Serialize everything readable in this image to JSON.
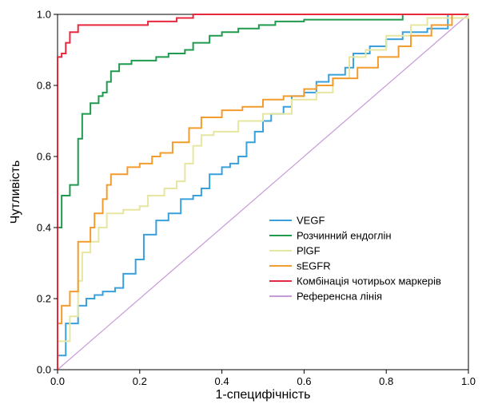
{
  "chart_data": {
    "type": "line",
    "xlabel": "1-специфічність",
    "ylabel": "Чутливість",
    "xlim": [
      0,
      1
    ],
    "ylim": [
      0,
      1
    ],
    "x_ticks": [
      "0.0",
      "0.2",
      "0.4",
      "0.6",
      "0.8",
      "1.0"
    ],
    "y_ticks": [
      "0.0",
      "0.2",
      "0.4",
      "0.6",
      "0.8",
      "1.0"
    ],
    "grid": false,
    "legend_position": "bottom-right",
    "series": [
      {
        "name": "VEGF",
        "color": "#3aa0dc",
        "points": [
          [
            0,
            0
          ],
          [
            0,
            0.04
          ],
          [
            0.02,
            0.04
          ],
          [
            0.02,
            0.13
          ],
          [
            0.05,
            0.13
          ],
          [
            0.05,
            0.18
          ],
          [
            0.07,
            0.18
          ],
          [
            0.07,
            0.2
          ],
          [
            0.09,
            0.2
          ],
          [
            0.09,
            0.21
          ],
          [
            0.11,
            0.21
          ],
          [
            0.11,
            0.22
          ],
          [
            0.14,
            0.22
          ],
          [
            0.14,
            0.23
          ],
          [
            0.16,
            0.23
          ],
          [
            0.16,
            0.27
          ],
          [
            0.19,
            0.27
          ],
          [
            0.19,
            0.31
          ],
          [
            0.21,
            0.31
          ],
          [
            0.21,
            0.38
          ],
          [
            0.24,
            0.38
          ],
          [
            0.24,
            0.42
          ],
          [
            0.27,
            0.42
          ],
          [
            0.27,
            0.44
          ],
          [
            0.3,
            0.44
          ],
          [
            0.3,
            0.48
          ],
          [
            0.33,
            0.48
          ],
          [
            0.33,
            0.49
          ],
          [
            0.35,
            0.49
          ],
          [
            0.35,
            0.51
          ],
          [
            0.37,
            0.51
          ],
          [
            0.37,
            0.55
          ],
          [
            0.4,
            0.55
          ],
          [
            0.4,
            0.57
          ],
          [
            0.42,
            0.57
          ],
          [
            0.42,
            0.58
          ],
          [
            0.44,
            0.58
          ],
          [
            0.44,
            0.6
          ],
          [
            0.46,
            0.6
          ],
          [
            0.46,
            0.64
          ],
          [
            0.48,
            0.64
          ],
          [
            0.48,
            0.67
          ],
          [
            0.5,
            0.67
          ],
          [
            0.5,
            0.7
          ],
          [
            0.52,
            0.7
          ],
          [
            0.52,
            0.72
          ],
          [
            0.55,
            0.72
          ],
          [
            0.55,
            0.74
          ],
          [
            0.57,
            0.74
          ],
          [
            0.57,
            0.77
          ],
          [
            0.6,
            0.77
          ],
          [
            0.6,
            0.78
          ],
          [
            0.63,
            0.78
          ],
          [
            0.63,
            0.81
          ],
          [
            0.66,
            0.81
          ],
          [
            0.66,
            0.83
          ],
          [
            0.7,
            0.83
          ],
          [
            0.7,
            0.85
          ],
          [
            0.72,
            0.85
          ],
          [
            0.72,
            0.89
          ],
          [
            0.76,
            0.89
          ],
          [
            0.76,
            0.91
          ],
          [
            0.8,
            0.91
          ],
          [
            0.8,
            0.93
          ],
          [
            0.84,
            0.93
          ],
          [
            0.84,
            0.95
          ],
          [
            0.9,
            0.95
          ],
          [
            0.9,
            0.96
          ],
          [
            0.95,
            0.96
          ],
          [
            0.95,
            1
          ],
          [
            1,
            1
          ]
        ]
      },
      {
        "name": "Розчинний ендоглін",
        "color": "#1f9a4e",
        "points": [
          [
            0,
            0
          ],
          [
            0,
            0.4
          ],
          [
            0.01,
            0.4
          ],
          [
            0.01,
            0.49
          ],
          [
            0.03,
            0.49
          ],
          [
            0.03,
            0.52
          ],
          [
            0.05,
            0.52
          ],
          [
            0.05,
            0.65
          ],
          [
            0.06,
            0.65
          ],
          [
            0.06,
            0.72
          ],
          [
            0.08,
            0.72
          ],
          [
            0.08,
            0.75
          ],
          [
            0.1,
            0.75
          ],
          [
            0.1,
            0.77
          ],
          [
            0.11,
            0.77
          ],
          [
            0.11,
            0.78
          ],
          [
            0.12,
            0.78
          ],
          [
            0.12,
            0.81
          ],
          [
            0.13,
            0.81
          ],
          [
            0.13,
            0.84
          ],
          [
            0.15,
            0.84
          ],
          [
            0.15,
            0.86
          ],
          [
            0.18,
            0.86
          ],
          [
            0.18,
            0.87
          ],
          [
            0.24,
            0.87
          ],
          [
            0.24,
            0.88
          ],
          [
            0.27,
            0.88
          ],
          [
            0.27,
            0.89
          ],
          [
            0.31,
            0.89
          ],
          [
            0.31,
            0.9
          ],
          [
            0.33,
            0.9
          ],
          [
            0.33,
            0.92
          ],
          [
            0.37,
            0.92
          ],
          [
            0.37,
            0.94
          ],
          [
            0.4,
            0.94
          ],
          [
            0.4,
            0.95
          ],
          [
            0.44,
            0.95
          ],
          [
            0.44,
            0.96
          ],
          [
            0.49,
            0.96
          ],
          [
            0.49,
            0.97
          ],
          [
            0.53,
            0.97
          ],
          [
            0.53,
            0.98
          ],
          [
            0.6,
            0.98
          ],
          [
            0.6,
            0.985
          ],
          [
            0.84,
            0.985
          ],
          [
            0.84,
            1
          ],
          [
            1,
            1
          ]
        ]
      },
      {
        "name": "PlGF",
        "color": "#e6e6a0",
        "points": [
          [
            0,
            0
          ],
          [
            0,
            0.08
          ],
          [
            0.03,
            0.08
          ],
          [
            0.03,
            0.15
          ],
          [
            0.05,
            0.15
          ],
          [
            0.05,
            0.25
          ],
          [
            0.06,
            0.25
          ],
          [
            0.06,
            0.33
          ],
          [
            0.08,
            0.33
          ],
          [
            0.08,
            0.36
          ],
          [
            0.1,
            0.36
          ],
          [
            0.1,
            0.4
          ],
          [
            0.12,
            0.4
          ],
          [
            0.12,
            0.44
          ],
          [
            0.16,
            0.44
          ],
          [
            0.16,
            0.45
          ],
          [
            0.2,
            0.45
          ],
          [
            0.2,
            0.46
          ],
          [
            0.22,
            0.46
          ],
          [
            0.22,
            0.49
          ],
          [
            0.26,
            0.49
          ],
          [
            0.26,
            0.51
          ],
          [
            0.29,
            0.51
          ],
          [
            0.29,
            0.53
          ],
          [
            0.31,
            0.53
          ],
          [
            0.31,
            0.58
          ],
          [
            0.33,
            0.58
          ],
          [
            0.33,
            0.63
          ],
          [
            0.35,
            0.63
          ],
          [
            0.35,
            0.66
          ],
          [
            0.38,
            0.66
          ],
          [
            0.38,
            0.67
          ],
          [
            0.44,
            0.67
          ],
          [
            0.44,
            0.7
          ],
          [
            0.5,
            0.7
          ],
          [
            0.5,
            0.72
          ],
          [
            0.57,
            0.72
          ],
          [
            0.57,
            0.76
          ],
          [
            0.63,
            0.76
          ],
          [
            0.63,
            0.78
          ],
          [
            0.67,
            0.78
          ],
          [
            0.67,
            0.82
          ],
          [
            0.71,
            0.82
          ],
          [
            0.71,
            0.88
          ],
          [
            0.75,
            0.88
          ],
          [
            0.75,
            0.9
          ],
          [
            0.8,
            0.9
          ],
          [
            0.8,
            0.94
          ],
          [
            0.86,
            0.94
          ],
          [
            0.86,
            0.97
          ],
          [
            0.9,
            0.97
          ],
          [
            0.9,
            0.99
          ],
          [
            1,
            0.99
          ],
          [
            1,
            1
          ]
        ]
      },
      {
        "name": "sEGFR",
        "color": "#f39c2e",
        "points": [
          [
            0,
            0
          ],
          [
            0,
            0.13
          ],
          [
            0.01,
            0.13
          ],
          [
            0.01,
            0.18
          ],
          [
            0.03,
            0.18
          ],
          [
            0.03,
            0.22
          ],
          [
            0.05,
            0.22
          ],
          [
            0.05,
            0.36
          ],
          [
            0.08,
            0.36
          ],
          [
            0.08,
            0.4
          ],
          [
            0.09,
            0.4
          ],
          [
            0.09,
            0.44
          ],
          [
            0.11,
            0.44
          ],
          [
            0.11,
            0.48
          ],
          [
            0.12,
            0.48
          ],
          [
            0.12,
            0.52
          ],
          [
            0.13,
            0.52
          ],
          [
            0.13,
            0.55
          ],
          [
            0.17,
            0.55
          ],
          [
            0.17,
            0.57
          ],
          [
            0.2,
            0.57
          ],
          [
            0.2,
            0.58
          ],
          [
            0.23,
            0.58
          ],
          [
            0.23,
            0.6
          ],
          [
            0.25,
            0.6
          ],
          [
            0.25,
            0.61
          ],
          [
            0.28,
            0.61
          ],
          [
            0.28,
            0.64
          ],
          [
            0.32,
            0.64
          ],
          [
            0.32,
            0.68
          ],
          [
            0.35,
            0.68
          ],
          [
            0.35,
            0.71
          ],
          [
            0.4,
            0.71
          ],
          [
            0.4,
            0.73
          ],
          [
            0.45,
            0.73
          ],
          [
            0.45,
            0.74
          ],
          [
            0.5,
            0.74
          ],
          [
            0.5,
            0.76
          ],
          [
            0.55,
            0.76
          ],
          [
            0.55,
            0.77
          ],
          [
            0.6,
            0.77
          ],
          [
            0.6,
            0.79
          ],
          [
            0.63,
            0.79
          ],
          [
            0.63,
            0.8
          ],
          [
            0.67,
            0.8
          ],
          [
            0.67,
            0.82
          ],
          [
            0.73,
            0.82
          ],
          [
            0.73,
            0.85
          ],
          [
            0.78,
            0.85
          ],
          [
            0.78,
            0.88
          ],
          [
            0.83,
            0.88
          ],
          [
            0.83,
            0.91
          ],
          [
            0.86,
            0.91
          ],
          [
            0.86,
            0.94
          ],
          [
            0.91,
            0.94
          ],
          [
            0.91,
            0.97
          ],
          [
            0.96,
            0.97
          ],
          [
            0.96,
            1
          ],
          [
            1,
            1
          ]
        ]
      },
      {
        "name": "Комбінація чотирьох маркерів",
        "color": "#e8283c",
        "points": [
          [
            0,
            0
          ],
          [
            0,
            0.88
          ],
          [
            0.01,
            0.88
          ],
          [
            0.01,
            0.89
          ],
          [
            0.02,
            0.89
          ],
          [
            0.02,
            0.92
          ],
          [
            0.03,
            0.92
          ],
          [
            0.03,
            0.95
          ],
          [
            0.05,
            0.95
          ],
          [
            0.05,
            0.97
          ],
          [
            0.22,
            0.97
          ],
          [
            0.22,
            0.98
          ],
          [
            0.29,
            0.98
          ],
          [
            0.29,
            0.99
          ],
          [
            0.33,
            0.99
          ],
          [
            0.33,
            1
          ],
          [
            1,
            1
          ]
        ]
      },
      {
        "name": "Референсна лінія",
        "color": "#c79ad8",
        "points": [
          [
            0,
            0
          ],
          [
            1,
            1
          ]
        ]
      }
    ]
  }
}
